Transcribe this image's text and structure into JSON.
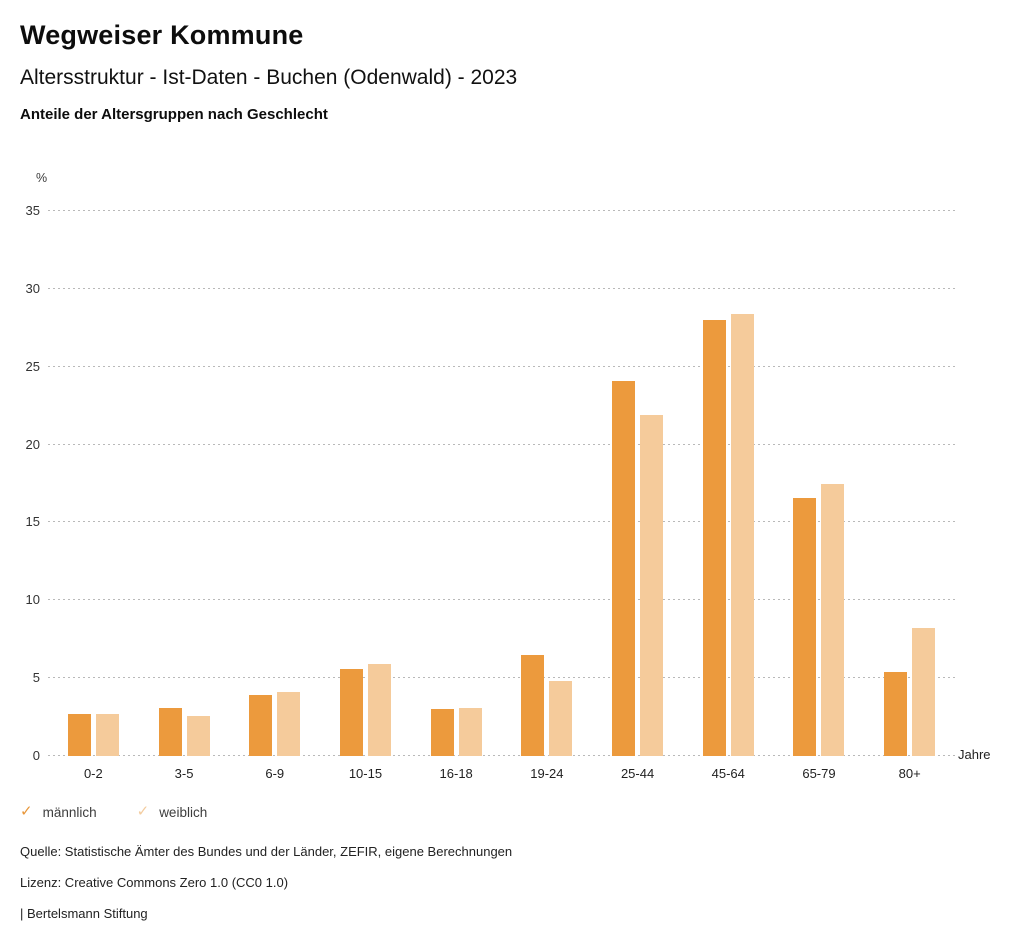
{
  "header": {
    "title": "Wegweiser Kommune",
    "subtitle": "Altersstruktur - Ist-Daten - Buchen (Odenwald) - 2023",
    "chart_heading": "Anteile der Altersgruppen nach Geschlecht"
  },
  "chart_data": {
    "type": "bar",
    "categories": [
      "0-2",
      "3-5",
      "6-9",
      "10-15",
      "16-18",
      "19-24",
      "25-44",
      "45-64",
      "65-79",
      "80+"
    ],
    "series": [
      {
        "name": "männlich",
        "color": "#EC9A3D",
        "values": [
          2.7,
          3.1,
          3.9,
          5.6,
          3.0,
          6.5,
          24.1,
          28.0,
          16.6,
          5.4
        ]
      },
      {
        "name": "weiblich",
        "color": "#F5CB9B",
        "values": [
          2.7,
          2.6,
          4.1,
          5.9,
          3.1,
          4.8,
          21.9,
          28.4,
          17.5,
          8.2
        ]
      }
    ],
    "title": "Anteile der Altersgruppen nach Geschlecht",
    "xlabel": "Jahre",
    "ylabel": "%",
    "ylim": [
      0,
      35
    ],
    "ytick_step": 5,
    "yticks": [
      0,
      5,
      10,
      15,
      20,
      25,
      30,
      35
    ],
    "grid": "horizontal-dotted",
    "gridline_color": "#b9b9b9",
    "legend_position": "bottom-left"
  },
  "legend": {
    "items": [
      {
        "label": "männlich",
        "check_color": "#E8973B"
      },
      {
        "label": "weiblich",
        "check_color": "#F3CC9F"
      }
    ],
    "check_glyph": "✓"
  },
  "footer": {
    "source": "Quelle: Statistische Ämter des Bundes und der Länder, ZEFIR, eigene Berechnungen",
    "license": "Lizenz: Creative Commons Zero 1.0 (CC0 1.0)",
    "attribution": "| Bertelsmann Stiftung"
  }
}
